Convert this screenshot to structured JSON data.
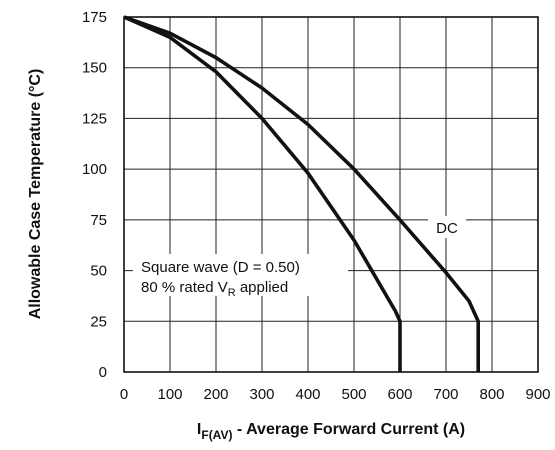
{
  "chart_data": {
    "type": "line",
    "xlabel_main": "I",
    "xlabel_sub": "F(AV)",
    "xlabel_rest": " - Average Forward Current (A)",
    "ylabel": "Allowable Case Temperature (°C)",
    "xlim": [
      0,
      900
    ],
    "ylim": [
      0,
      175
    ],
    "x_ticks": [
      0,
      100,
      200,
      300,
      400,
      500,
      600,
      700,
      800,
      900
    ],
    "y_ticks": [
      0,
      25,
      50,
      75,
      100,
      125,
      150,
      175
    ],
    "grid": true,
    "annotation": {
      "line1": "Square wave (D = 0.50)",
      "line2_main": "80 % rated V",
      "line2_sub": "R",
      "line2_rest": " applied"
    },
    "series": [
      {
        "name": "DC",
        "x": [
          0,
          100,
          200,
          300,
          400,
          500,
          600,
          700,
          750,
          770,
          770
        ],
        "y": [
          175,
          167,
          155,
          140,
          122,
          100,
          75,
          49,
          35,
          25,
          0
        ]
      },
      {
        "name": "",
        "x": [
          0,
          100,
          200,
          300,
          400,
          500,
          590,
          600,
          600
        ],
        "y": [
          175,
          165,
          148,
          125,
          98,
          65,
          30,
          25,
          0
        ]
      }
    ]
  }
}
